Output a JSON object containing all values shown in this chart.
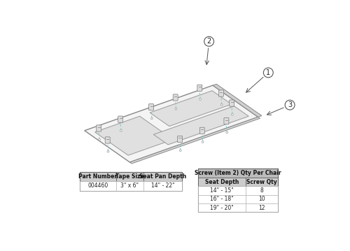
{
  "background_color": "#ffffff",
  "table1": {
    "headers": [
      "Part Number",
      "Tape Size",
      "Seat Pan Depth"
    ],
    "rows": [
      [
        "004460",
        "3\" x 6\"",
        "14\" - 22\""
      ]
    ]
  },
  "table2": {
    "title": "Screw (Item 2) Qty Per Chair",
    "headers": [
      "Seat Depth",
      "Screw Qty"
    ],
    "rows": [
      [
        "14\" - 15\"",
        "8"
      ],
      [
        "16\" - 18\"",
        "10"
      ],
      [
        "19\" - 20\"",
        "12"
      ]
    ]
  },
  "plate_color": "#f4f4f4",
  "plate_edge": "#888888",
  "hole_color": "#e0e0e0",
  "hole_edge": "#999999",
  "screw_color": "#cccccc",
  "screw_edge": "#777777",
  "callout_edge": "#555555"
}
